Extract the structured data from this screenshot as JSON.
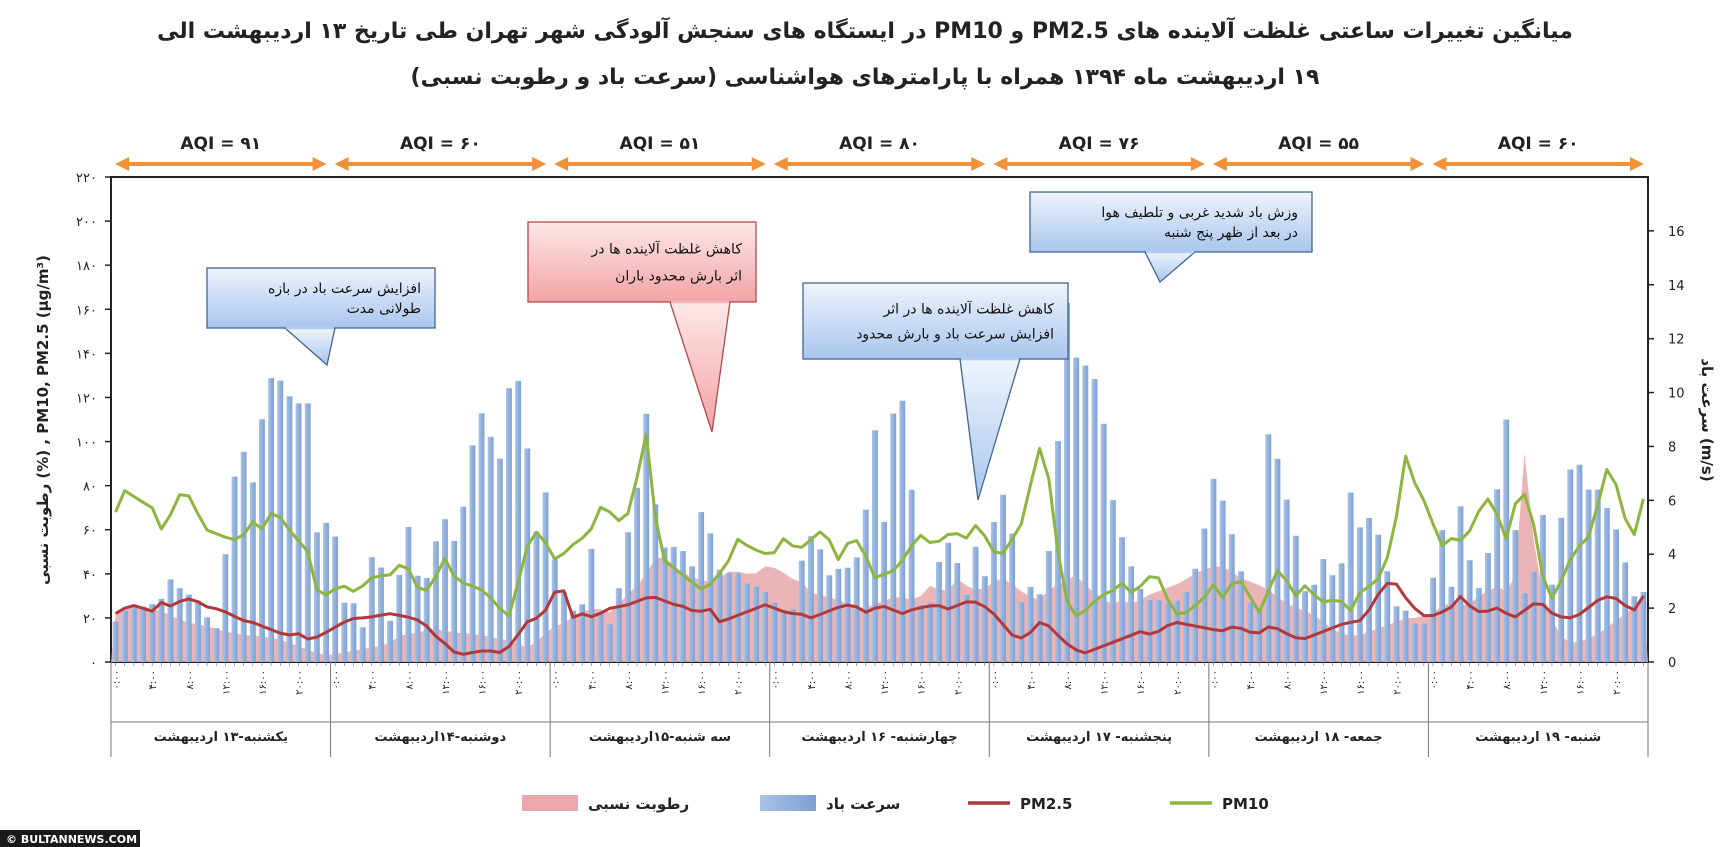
{
  "title_line1": "میانگین تغییرات ساعتی غلظت آلاینده های PM2.5 و PM10  در ایستگاه های سنجش آلودگی شهر تهران طی تاریخ ۱۳ اردیبهشت الی",
  "title_line2": "۱۹ اردیبهشت ماه ۱۳۹۴ همراه با پارامترهای هواشناسی (سرعت باد و رطوبت نسبی)",
  "credit": "© BULTANNEWS.COM",
  "chart_data": {
    "type": "line",
    "y_left_label": "PM10, PM2.5 (µg/m³) ,  (%) رطوبت نسبی",
    "y_right_label": "(m/s) سرعت باد",
    "y_left_range": [
      0,
      220
    ],
    "y_left_ticks": [
      "۰",
      "۲۰",
      "۴۰",
      "۶۰",
      "۸۰",
      "۱۰۰",
      "۱۲۰",
      "۱۴۰",
      "۱۶۰",
      "۱۸۰",
      "۲۰۰",
      "۲۲۰"
    ],
    "y_right_range": [
      0,
      18
    ],
    "y_right_ticks": [
      "0",
      "2",
      "4",
      "6",
      "8",
      "10",
      "12",
      "14",
      "16"
    ],
    "hour_ticks": [
      "۰:۰۰",
      "۴:۰۰",
      "۸:۰۰",
      "۱۲:۰۰",
      "۱۶:۰۰",
      "۲۰:۰۰"
    ],
    "days": [
      "یکشنبه-۱۳ اردیبهشت",
      "دوشنبه-۱۴اردیبهشت",
      "سه شنبه-۱۵اردیبهشت",
      "چهارشنبه- ۱۶ اردیبهشت",
      "پنجشنبه- ۱۷ اردیبهشت",
      "جمعه- ۱۸ اردیبهشت",
      "شنبه- ۱۹ اردیبهشت"
    ],
    "aqi": [
      "AQI = ۹۱",
      "AQI = ۶۰",
      "AQI = ۵۱",
      "AQI = ۸۰",
      "AQI = ۷۶",
      "AQI = ۵۵",
      "AQI = ۶۰"
    ],
    "legend": [
      {
        "label": "رطوبت نسبی",
        "color": "#e8a8ac",
        "kind": "area"
      },
      {
        "label": "سرعت باد",
        "color": "#8eaedc",
        "kind": "bar"
      },
      {
        "label": "PM2.5",
        "color": "#b2383a",
        "kind": "line"
      },
      {
        "label": "PM10",
        "color": "#8db53f",
        "kind": "line"
      }
    ],
    "series": [
      {
        "name": "PM10",
        "color": "#8db53f",
        "axis": "left",
        "values": [
          68,
          80,
          72,
          73,
          60,
          68,
          80,
          70,
          60,
          58,
          56,
          55,
          64,
          60,
          70,
          62,
          56,
          50,
          28,
          32,
          35,
          32,
          35,
          40,
          38,
          44,
          42,
          30,
          35,
          48,
          38,
          35,
          34,
          30,
          24,
          20,
          48,
          60,
          54,
          45,
          52,
          55,
          60,
          72,
          66,
          62,
          82,
          106,
          48,
          44,
          40,
          36,
          32,
          38,
          44,
          56,
          52,
          50,
          48,
          56,
          52,
          52,
          60,
          56,
          45,
          58,
          52,
          38,
          40,
          42,
          50,
          58,
          54,
          55,
          60,
          55,
          62,
          56,
          46,
          54,
          62,
          84,
          104,
          58,
          28,
          20,
          25,
          30,
          32,
          36,
          30,
          38,
          40,
          28,
          20,
          24,
          28,
          35,
          28,
          40,
          32,
          22,
          34,
          45,
          28,
          35,
          30,
          26,
          30,
          22,
          32,
          35,
          40,
          60,
          94,
          78,
          70,
          52,
          56,
          55,
          62,
          76,
          68,
          54,
          80,
          72,
          40,
          28,
          40,
          52,
          54,
          72,
          92,
          72,
          54,
          74
        ]
      },
      {
        "name": "PM2.5",
        "color": "#b2383a",
        "axis": "left",
        "values": [
          22,
          25,
          26,
          22,
          27,
          25,
          29,
          28,
          25,
          24,
          22,
          19,
          18,
          16,
          14,
          12,
          13,
          10,
          12,
          15,
          18,
          20,
          20,
          21,
          22,
          21,
          20,
          18,
          12,
          8,
          3,
          4,
          5,
          5,
          4,
          10,
          18,
          20,
          25,
          38,
          20,
          22,
          20,
          24,
          25,
          26,
          28,
          30,
          28,
          26,
          25,
          22,
          25,
          18,
          20,
          22,
          24,
          26,
          24,
          22,
          22,
          20,
          22,
          24,
          26,
          25,
          22,
          26,
          24,
          22,
          24,
          25,
          26,
          24,
          26,
          28,
          26,
          22,
          16,
          10,
          12,
          18,
          16,
          10,
          6,
          4,
          6,
          8,
          10,
          12,
          14,
          12,
          16,
          18,
          17,
          16,
          15,
          14,
          16,
          15,
          12,
          16,
          15,
          12,
          10,
          12,
          14,
          16,
          18,
          18,
          24,
          33,
          38,
          30,
          24,
          20,
          22,
          24,
          30,
          24,
          22,
          25,
          22,
          20,
          26,
          27,
          22,
          20,
          20,
          24,
          28,
          30,
          28,
          22,
          30
        ]
      },
      {
        "name": "رطوبت نسبی",
        "color": "#e8a8ac",
        "axis": "left",
        "kind": "area",
        "values": [
          22,
          24,
          26,
          24,
          23,
          20,
          18,
          17,
          16,
          14,
          13,
          12,
          12,
          11,
          10,
          8,
          6,
          4,
          3,
          4,
          5,
          6,
          7,
          8,
          12,
          13,
          14,
          15,
          14,
          13,
          13,
          12,
          11,
          10,
          8,
          6,
          12,
          16,
          18,
          22,
          24,
          24,
          22,
          30,
          34,
          42,
          50,
          44,
          40,
          38,
          36,
          38,
          42,
          40,
          40,
          44,
          42,
          38,
          36,
          30,
          30,
          28,
          26,
          24,
          26,
          28,
          30,
          28,
          30,
          36,
          30,
          38,
          34,
          32,
          36,
          38,
          34,
          30,
          28,
          34,
          36,
          40,
          34,
          30,
          26,
          28,
          26,
          30,
          32,
          34,
          36,
          40,
          42,
          44,
          42,
          38,
          36,
          34,
          30,
          26,
          24,
          22,
          18,
          14,
          12,
          12,
          14,
          16,
          18,
          20,
          20,
          22,
          25,
          28,
          24,
          30,
          32,
          36,
          26,
          98,
          40,
          22,
          12,
          8,
          10,
          12,
          16,
          20,
          24,
          28
        ]
      },
      {
        "name": "سرعت باد",
        "color": "#8eaedc",
        "axis": "right",
        "kind": "bar",
        "values": [
          1.5,
          2,
          2,
          2.1,
          2.3,
          3.2,
          2.5,
          2.5,
          1.7,
          1.2,
          5.2,
          8.5,
          6.3,
          9.2,
          11,
          10,
          9.6,
          9.6,
          3.5,
          6.3,
          2.2,
          2.2,
          1.1,
          5.5,
          1,
          3.1,
          5.3,
          2.2,
          4.1,
          5.4,
          4.4,
          6.3,
          9.6,
          8.5,
          7.5,
          11,
          10,
          4.5,
          6.3,
          3.2,
          2.2,
          1.5,
          4.3,
          1.4,
          1.4,
          4.3,
          6.2,
          9.6,
          4.2,
          4.3,
          4.2,
          3.5,
          6.3,
          3.5,
          3.3,
          3.3,
          2.8,
          2.8,
          2.3,
          1.8,
          2,
          4.8,
          4.5,
          3.2,
          3.5,
          3.5,
          4.3,
          9,
          4.8,
          11,
          8.5,
          2.1,
          2.2,
          4.2,
          4.6,
          2.1,
          4.3,
          2.9,
          6.7,
          5.5,
          2.2,
          2.9,
          2.3,
          6.3,
          13.5,
          11,
          11,
          10,
          6.2,
          4.5,
          3.2,
          2.3,
          2.3,
          2.2,
          2.3,
          2.8,
          4.5,
          6.8,
          5.8,
          4.1,
          2.4,
          1.6,
          9.6,
          6.5,
          5.5,
          2.6,
          2.9,
          4.2,
          2.3,
          6.5,
          4.9,
          5.5,
          4.1,
          2.1,
          1.9,
          1.3,
          1.5,
          5.5,
          2.7,
          6.4,
          2.3,
          3.3,
          6.2,
          9.4,
          2.8,
          2.3,
          5.8,
          2.6,
          6.4,
          7.8,
          6.4,
          6.4,
          5.5,
          4.5,
          2.4,
          2.6
        ]
      }
    ],
    "callouts": [
      {
        "lines": [
          "افزایش سرعت باد در بازه",
          "طولانی مدت"
        ],
        "style": "blue"
      },
      {
        "lines": [
          "کاهش غلظت آلاینده ها در",
          "اثر بارش محدود باران"
        ],
        "style": "red"
      },
      {
        "lines": [
          "کاهش غلظت آلاینده ها در اثر",
          "افزایش سرعت باد و بارش محدود"
        ],
        "style": "blue"
      },
      {
        "lines": [
          "وزش باد شدید غربی و تلطیف هوا",
          "در بعد از ظهر پنج شنبه"
        ],
        "style": "blue"
      }
    ]
  }
}
